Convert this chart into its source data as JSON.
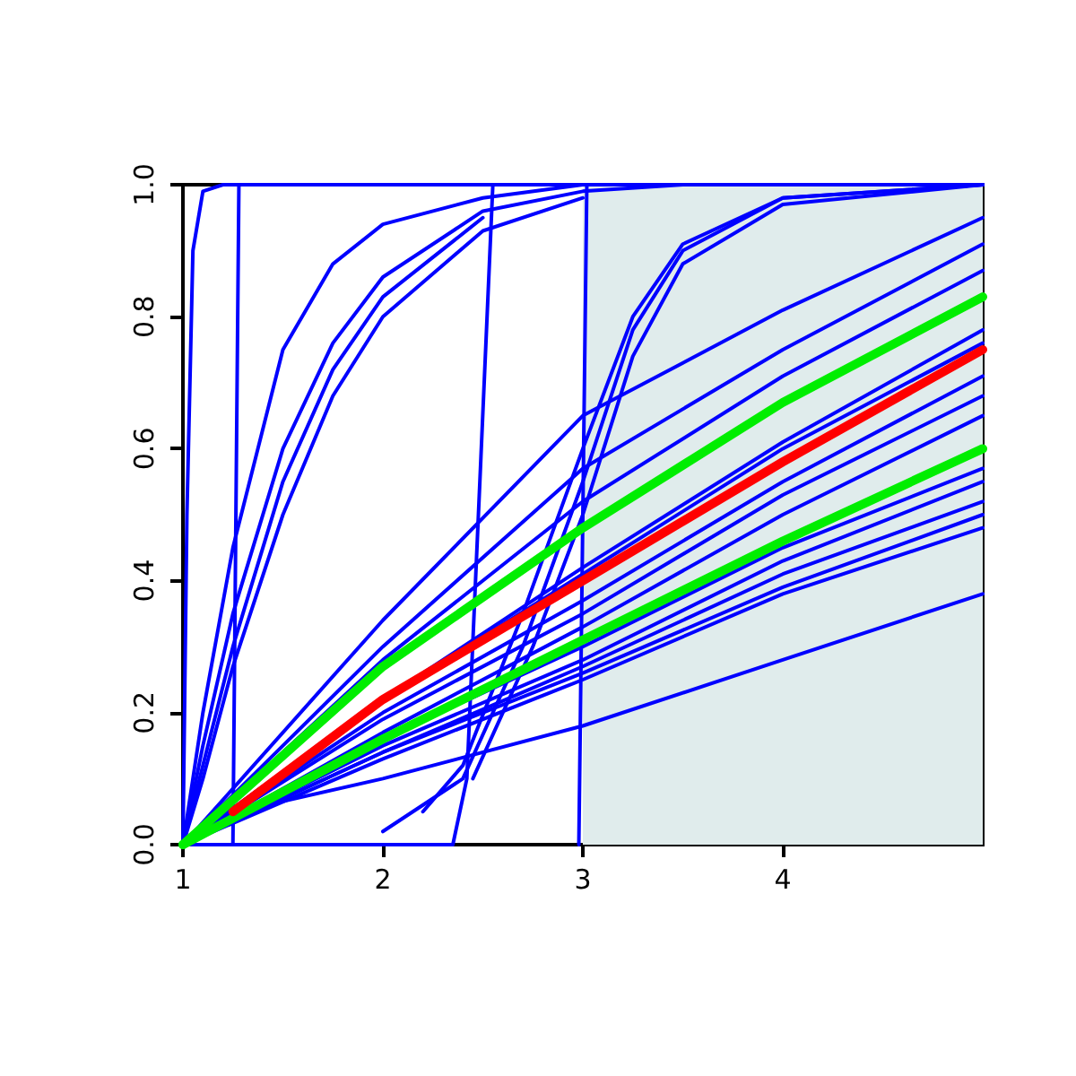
{
  "chart_data": {
    "type": "line",
    "xlim": [
      1,
      5
    ],
    "xticks": [
      1,
      2,
      3,
      4
    ],
    "ylim": [
      0,
      1
    ],
    "yticks": [
      {
        "value": 0,
        "label": "0.0"
      },
      0.2,
      0.4,
      0.6,
      0.8,
      {
        "value": 1,
        "label": "1.0"
      }
    ],
    "grid": false,
    "marker": "none",
    "line_style": "solid",
    "bands": [
      {
        "axis": "x",
        "from": 3,
        "to": 5,
        "color": "#e0ecec"
      }
    ],
    "series": [
      {
        "color": "#0000ff",
        "x": [
          1,
          1.02,
          1.05,
          1.1,
          1.2,
          5
        ],
        "values": [
          0,
          0.5,
          0.9,
          0.99,
          1,
          1
        ]
      },
      {
        "color": "#0000ff",
        "x": [
          1.25,
          1.28,
          5
        ],
        "values": [
          0,
          1,
          1
        ]
      },
      {
        "color": "#0000ff",
        "x": [
          1,
          2.35,
          2.42,
          2.55,
          4
        ],
        "values": [
          0,
          0,
          0.1,
          1,
          1
        ]
      },
      {
        "color": "#0000ff",
        "x": [
          2.98,
          3,
          3.02,
          5
        ],
        "values": [
          0,
          0.5,
          1,
          1
        ]
      },
      {
        "color": "#0000ff",
        "x": [
          1,
          1.1,
          1.25,
          1.5,
          1.75,
          2,
          2.5,
          3
        ],
        "values": [
          0,
          0.2,
          0.45,
          0.75,
          0.88,
          0.94,
          0.98,
          1
        ]
      },
      {
        "color": "#0000ff",
        "x": [
          1,
          1.1,
          1.25,
          1.5,
          1.75,
          2,
          2.5,
          3,
          3.5
        ],
        "values": [
          0,
          0.15,
          0.35,
          0.6,
          0.76,
          0.86,
          0.96,
          0.99,
          1
        ]
      },
      {
        "color": "#0000ff",
        "x": [
          1,
          1.1,
          1.25,
          1.5,
          1.75,
          2,
          2.5
        ],
        "values": [
          0,
          0.12,
          0.3,
          0.55,
          0.72,
          0.83,
          0.95
        ]
      },
      {
        "color": "#0000ff",
        "x": [
          1,
          1.1,
          1.25,
          1.5,
          1.75,
          2,
          2.5,
          3
        ],
        "values": [
          0,
          0.1,
          0.27,
          0.5,
          0.68,
          0.8,
          0.93,
          0.98
        ]
      },
      {
        "color": "#0000ff",
        "x": [
          2,
          2.4,
          2.7,
          3,
          3.25,
          3.5,
          4,
          5
        ],
        "values": [
          0.02,
          0.1,
          0.3,
          0.55,
          0.78,
          0.9,
          0.98,
          1
        ]
      },
      {
        "color": "#0000ff",
        "x": [
          2.2,
          2.4,
          2.7,
          3,
          3.25,
          3.5,
          4,
          5
        ],
        "values": [
          0.05,
          0.12,
          0.35,
          0.6,
          0.8,
          0.91,
          0.98,
          1
        ]
      },
      {
        "color": "#0000ff",
        "x": [
          2.45,
          2.75,
          3,
          3.25,
          3.5,
          4,
          5
        ],
        "values": [
          0.1,
          0.3,
          0.5,
          0.74,
          0.88,
          0.97,
          1
        ]
      },
      {
        "color": "#0000ff",
        "x": [
          1,
          2,
          3,
          4,
          5
        ],
        "values": [
          0,
          0.34,
          0.65,
          0.81,
          0.95
        ]
      },
      {
        "color": "#0000ff",
        "x": [
          1,
          2,
          3,
          4,
          5
        ],
        "values": [
          0,
          0.3,
          0.57,
          0.75,
          0.91
        ]
      },
      {
        "color": "#0000ff",
        "x": [
          1,
          2,
          3,
          4,
          5
        ],
        "values": [
          0,
          0.28,
          0.52,
          0.71,
          0.87
        ]
      },
      {
        "color": "#0000ff",
        "x": [
          1,
          2,
          3,
          4,
          5
        ],
        "values": [
          0,
          0.22,
          0.42,
          0.61,
          0.78
        ]
      },
      {
        "color": "#0000ff",
        "x": [
          1,
          2,
          3,
          4,
          5
        ],
        "values": [
          0,
          0.22,
          0.41,
          0.6,
          0.76
        ]
      },
      {
        "color": "#0000ff",
        "x": [
          1,
          2,
          3,
          4,
          5
        ],
        "values": [
          0,
          0.2,
          0.37,
          0.55,
          0.71
        ]
      },
      {
        "color": "#0000ff",
        "x": [
          1,
          2,
          3,
          4,
          5
        ],
        "values": [
          0,
          0.19,
          0.35,
          0.53,
          0.68
        ]
      },
      {
        "color": "#0000ff",
        "x": [
          1,
          2,
          3,
          4,
          5
        ],
        "values": [
          0,
          0.17,
          0.33,
          0.5,
          0.65
        ]
      },
      {
        "color": "#0000ff",
        "x": [
          1,
          2,
          3,
          4,
          5
        ],
        "values": [
          0,
          0.16,
          0.3,
          0.45,
          0.57
        ]
      },
      {
        "color": "#0000ff",
        "x": [
          1,
          2,
          3,
          4,
          5
        ],
        "values": [
          0,
          0.15,
          0.28,
          0.43,
          0.55
        ]
      },
      {
        "color": "#0000ff",
        "x": [
          1,
          2,
          3,
          4,
          5
        ],
        "values": [
          0,
          0.14,
          0.27,
          0.41,
          0.52
        ]
      },
      {
        "color": "#0000ff",
        "x": [
          1,
          2,
          3,
          4,
          5
        ],
        "values": [
          0,
          0.14,
          0.26,
          0.39,
          0.5
        ]
      },
      {
        "color": "#0000ff",
        "x": [
          1,
          2,
          3,
          4,
          5
        ],
        "values": [
          0,
          0.13,
          0.25,
          0.38,
          0.48
        ]
      },
      {
        "color": "#0000ff",
        "x": [
          1.27,
          2,
          3,
          4,
          5
        ],
        "values": [
          0.05,
          0.1,
          0.18,
          0.28,
          0.38
        ]
      },
      {
        "color": "#00ee00",
        "x": [
          1,
          2,
          3,
          4,
          5
        ],
        "values": [
          0,
          0.27,
          0.48,
          0.67,
          0.83
        ]
      },
      {
        "color": "#00ee00",
        "x": [
          1,
          2,
          3,
          4,
          5
        ],
        "values": [
          0,
          0.16,
          0.31,
          0.46,
          0.6
        ]
      },
      {
        "color": "#ff0000",
        "x": [
          1.25,
          2,
          3,
          4,
          5
        ],
        "values": [
          0.05,
          0.22,
          0.4,
          0.58,
          0.75
        ]
      }
    ]
  }
}
